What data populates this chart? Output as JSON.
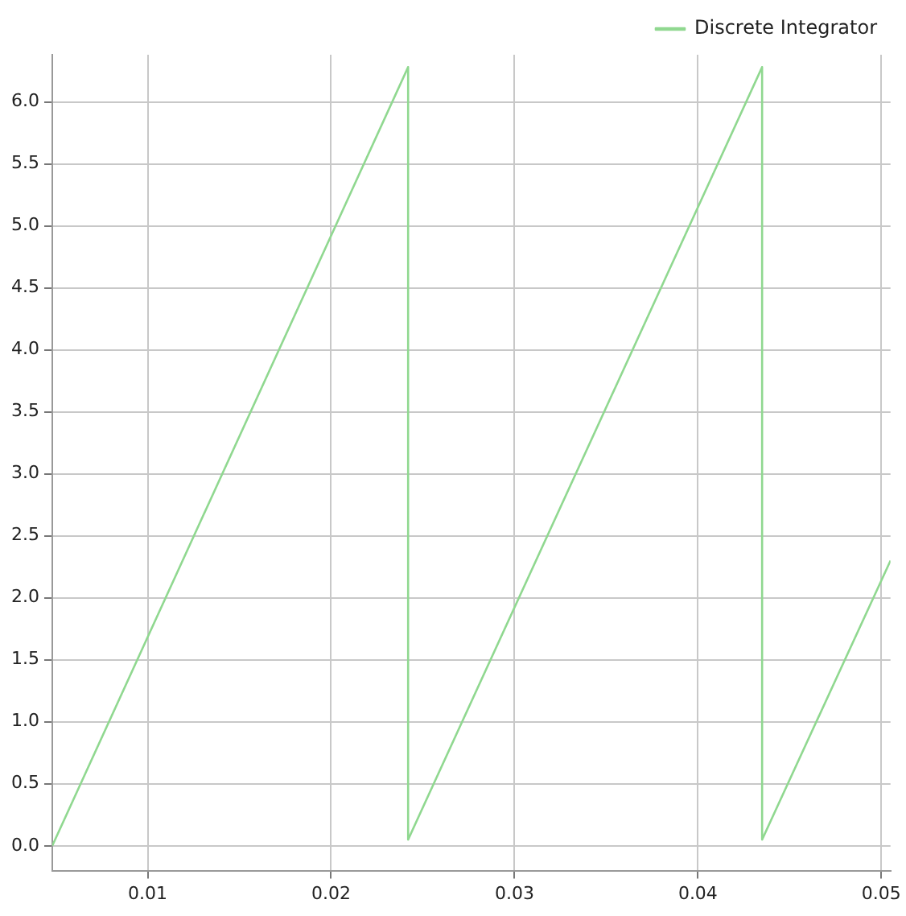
{
  "chart_data": {
    "type": "line",
    "series": [
      {
        "name": "Discrete Integrator",
        "color": "#90d890",
        "x": [
          0.0048,
          0.0242,
          0.0242,
          0.0435,
          0.0435,
          0.0505
        ],
        "values": [
          0,
          6.28,
          0.05,
          6.28,
          0.05,
          2.3
        ]
      }
    ],
    "xlim": [
      0.0048,
      0.0505
    ],
    "xticks": [
      0.01,
      0.02,
      0.03,
      0.04,
      0.05
    ],
    "ylim": [
      -0.2,
      6.38
    ],
    "yticks": [
      {
        "value": 0,
        "label": "0.0"
      },
      0.5,
      {
        "value": 1,
        "label": "1.0"
      },
      1.5,
      {
        "value": 2,
        "label": "2.0"
      },
      2.5,
      {
        "value": 3,
        "label": "3.0"
      },
      3.5,
      {
        "value": 4,
        "label": "4.0"
      },
      4.5,
      {
        "value": 5,
        "label": "5.0"
      },
      5.5,
      {
        "value": 6,
        "label": "6.0"
      }
    ],
    "grid": true,
    "legend": "top right",
    "marker": "none",
    "line_style": "solid"
  }
}
